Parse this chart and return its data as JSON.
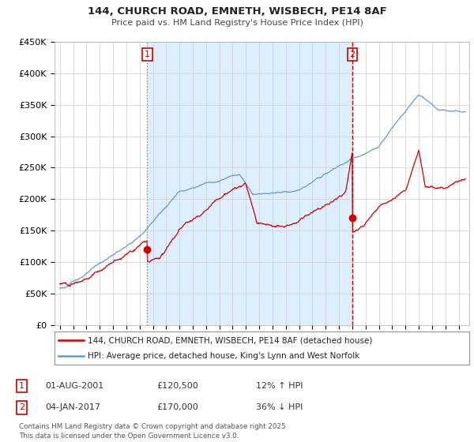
{
  "title1": "144, CHURCH ROAD, EMNETH, WISBECH, PE14 8AF",
  "title2": "Price paid vs. HM Land Registry's House Price Index (HPI)",
  "ylabel_ticks": [
    "£0",
    "£50K",
    "£100K",
    "£150K",
    "£200K",
    "£250K",
    "£300K",
    "£350K",
    "£400K",
    "£450K"
  ],
  "ylim": [
    0,
    450000
  ],
  "xlim_start": 1994.6,
  "xlim_end": 2025.8,
  "line1_color": "#cc0000",
  "line2_color": "#6699cc",
  "vline1_x": 2001.58,
  "vline2_x": 2017.01,
  "marker1_x": 2001.58,
  "marker1_y": 120500,
  "marker2_x": 2017.01,
  "marker2_y": 170000,
  "shade_color": "#ddeeff",
  "legend_line1": "144, CHURCH ROAD, EMNETH, WISBECH, PE14 8AF (detached house)",
  "legend_line2": "HPI: Average price, detached house, King's Lynn and West Norfolk",
  "footnote": "Contains HM Land Registry data © Crown copyright and database right 2025.\nThis data is licensed under the Open Government Licence v3.0.",
  "background_color": "#ffffff",
  "grid_color": "#cccccc"
}
